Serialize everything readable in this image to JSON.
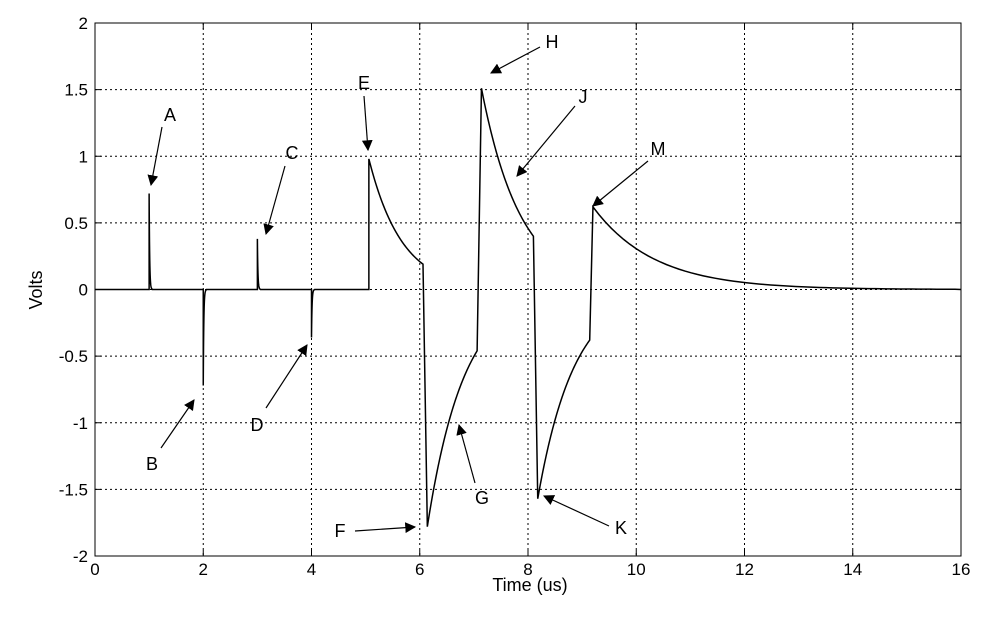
{
  "chart_data": {
    "type": "line",
    "title": "",
    "xlabel": "Time (us)",
    "ylabel": "Volts",
    "xlim": [
      0,
      16
    ],
    "ylim": [
      -2,
      2
    ],
    "grid": true,
    "grid_style": "dotted",
    "line_color": "#000000",
    "x_ticks": [
      0,
      2,
      4,
      6,
      8,
      10,
      12,
      14,
      16
    ],
    "y_ticks": [
      -2,
      -1.5,
      -1,
      -0.5,
      0,
      0.5,
      1,
      1.5,
      2
    ],
    "x_tick_labels": [
      "0",
      "2",
      "4",
      "6",
      "8",
      "10",
      "12",
      "14",
      "16"
    ],
    "y_tick_labels": [
      "-2",
      "-1.5",
      "-1",
      "-0.5",
      "0",
      "0.5",
      "1",
      "1.5",
      "2"
    ],
    "segments": [
      {
        "t0": 0.0,
        "t1": 1.0,
        "v0": 0,
        "v1": 0
      },
      {
        "t0": 1.0,
        "t1": 1.06,
        "v0": 0.72,
        "v1": 0
      },
      {
        "t0": 1.06,
        "t1": 2.0,
        "v0": 0,
        "v1": 0
      },
      {
        "t0": 2.0,
        "t1": 2.06,
        "v0": -0.72,
        "v1": 0
      },
      {
        "t0": 2.06,
        "t1": 3.0,
        "v0": 0,
        "v1": 0
      },
      {
        "t0": 3.0,
        "t1": 3.06,
        "v0": 0.38,
        "v1": 0
      },
      {
        "t0": 3.06,
        "t1": 4.0,
        "v0": 0,
        "v1": 0
      },
      {
        "t0": 4.0,
        "t1": 4.06,
        "v0": -0.36,
        "v1": 0
      },
      {
        "t0": 4.06,
        "t1": 5.06,
        "v0": 0,
        "v1": 0
      },
      {
        "t0": 5.06,
        "t1": 6.06,
        "v0": 0.98,
        "v1": 0.19
      },
      {
        "t0": 6.14,
        "t1": 7.06,
        "v0": -1.78,
        "v1": -0.46
      },
      {
        "t0": 7.14,
        "t1": 8.1,
        "v0": 1.51,
        "v1": 0.4
      },
      {
        "t0": 8.18,
        "t1": 9.14,
        "v0": -1.57,
        "v1": -0.38
      },
      {
        "t0": 9.2,
        "t1": 16.0,
        "v0": 0.62,
        "v1": 0.0
      }
    ],
    "annotations": [
      {
        "label": "A",
        "point": [
          0.98,
          0.8
        ]
      },
      {
        "label": "B",
        "point": [
          1.82,
          -0.82
        ]
      },
      {
        "label": "C",
        "point": [
          3.08,
          0.43
        ]
      },
      {
        "label": "D",
        "point": [
          3.92,
          -0.42
        ]
      },
      {
        "label": "E",
        "point": [
          5.0,
          1.02
        ]
      },
      {
        "label": "F",
        "point": [
          5.92,
          -1.78
        ]
      },
      {
        "label": "G",
        "point": [
          6.72,
          -0.98
        ]
      },
      {
        "label": "H",
        "point": [
          7.12,
          1.62
        ]
      },
      {
        "label": "J",
        "point": [
          7.85,
          0.85
        ]
      },
      {
        "label": "K",
        "point": [
          8.3,
          -1.58
        ]
      },
      {
        "label": "M",
        "point": [
          9.16,
          0.64
        ]
      }
    ]
  }
}
